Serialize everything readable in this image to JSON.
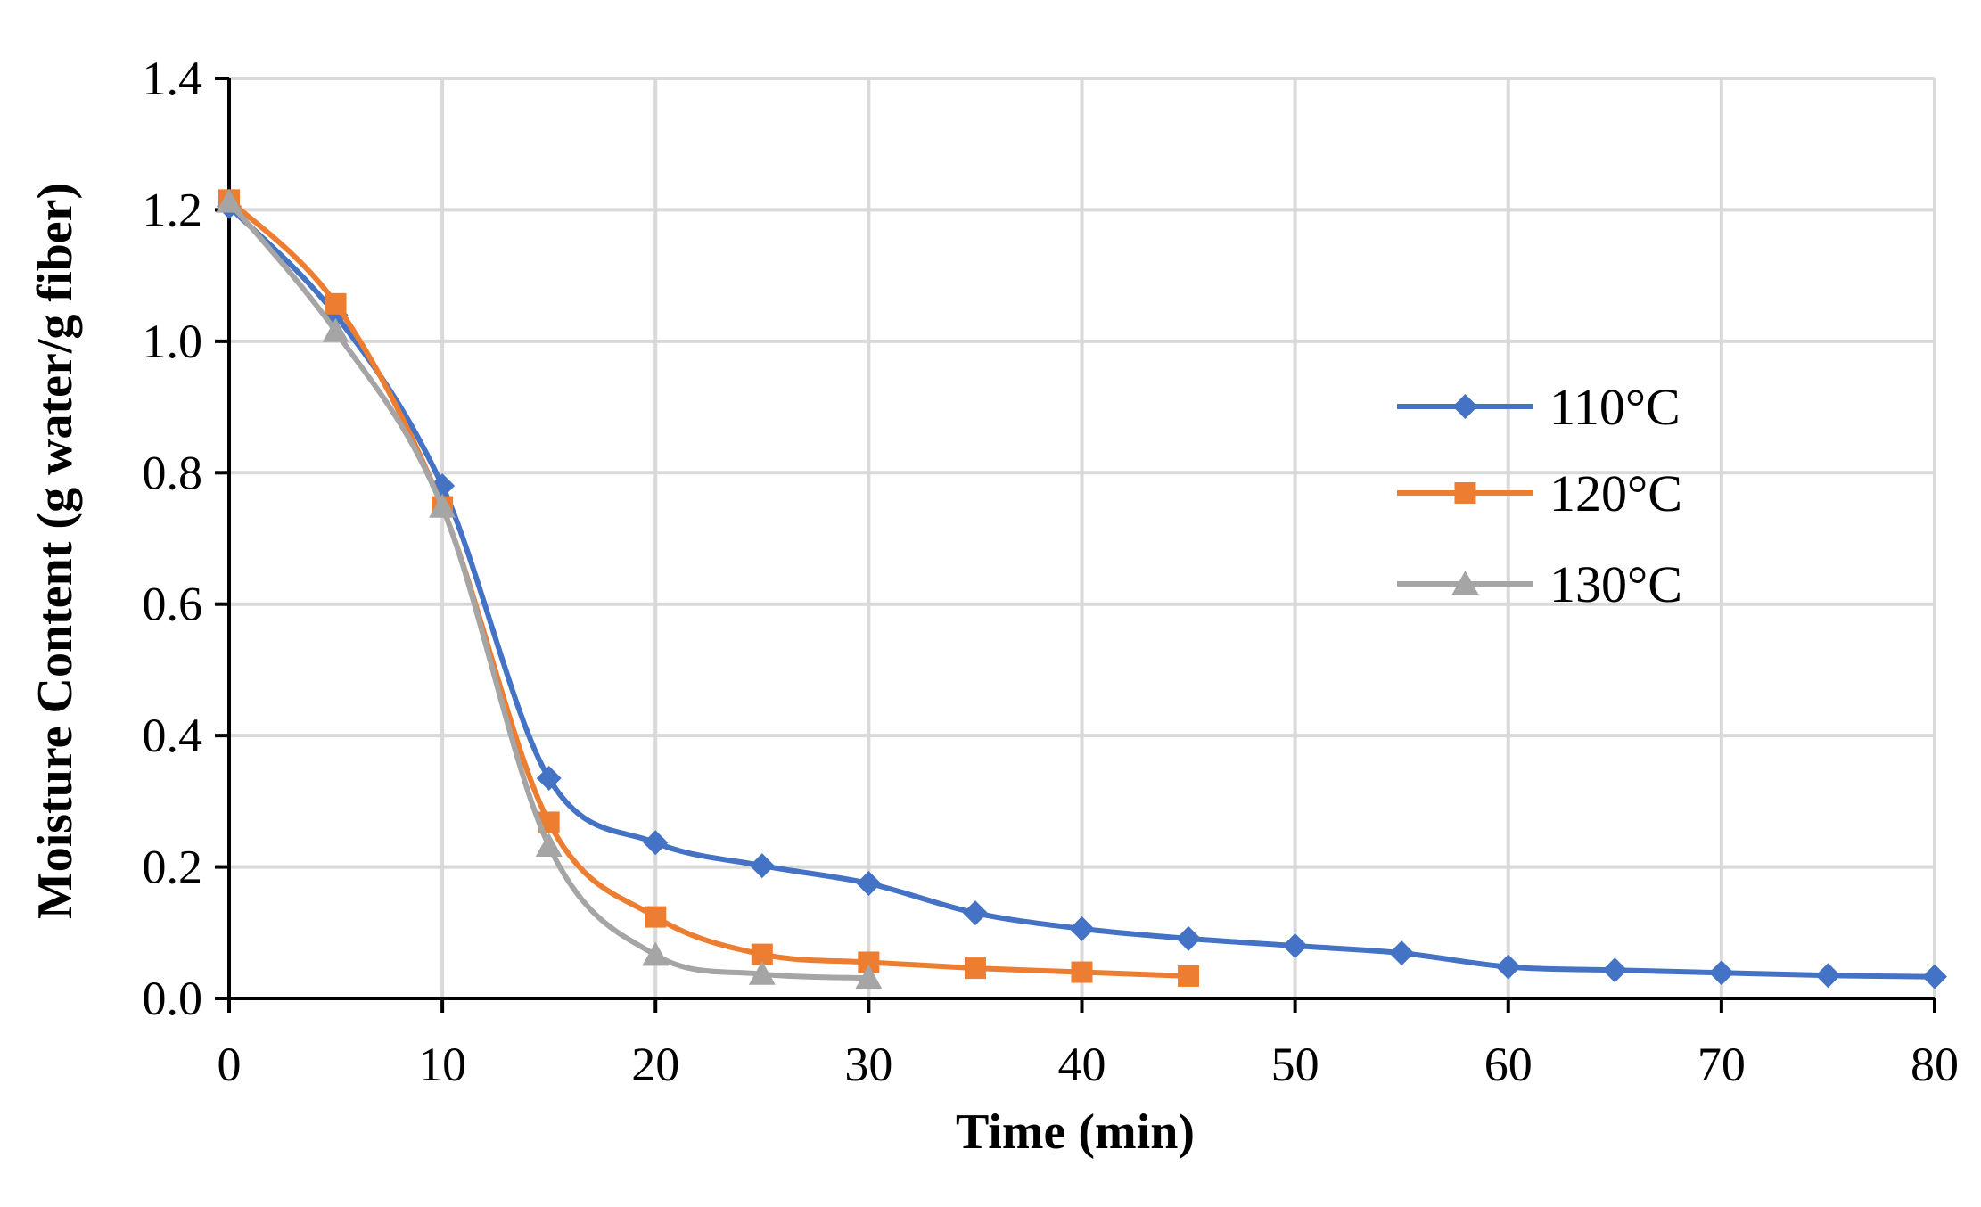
{
  "chart_data": {
    "type": "line",
    "title": "",
    "xlabel": "Time (min)",
    "ylabel": "Moisture Content (g water/g fiber)",
    "xlim": [
      0,
      80
    ],
    "ylim": [
      0,
      1.4
    ],
    "x_ticks": [
      "0",
      "10",
      "20",
      "30",
      "40",
      "50",
      "60",
      "70",
      "80"
    ],
    "y_ticks": [
      "0.0",
      "0.2",
      "0.4",
      "0.6",
      "0.8",
      "1.0",
      "1.2",
      "1.4"
    ],
    "grid": true,
    "legend_position": "right",
    "series": [
      {
        "name": "110°C",
        "color": "#4472C4",
        "marker": "diamond",
        "x": [
          0,
          5,
          10,
          15,
          20,
          25,
          30,
          35,
          40,
          45,
          50,
          55,
          60,
          65,
          70,
          75,
          80
        ],
        "y": [
          1.205,
          1.04,
          0.78,
          0.335,
          0.237,
          0.202,
          0.175,
          0.13,
          0.106,
          0.091,
          0.08,
          0.069,
          0.048,
          0.043,
          0.039,
          0.035,
          0.033
        ]
      },
      {
        "name": "120°C",
        "color": "#ED7D31",
        "marker": "square",
        "x": [
          0,
          5,
          10,
          15,
          20,
          25,
          30,
          35,
          40,
          45
        ],
        "y": [
          1.215,
          1.057,
          0.748,
          0.268,
          0.124,
          0.067,
          0.055,
          0.046,
          0.04,
          0.034
        ]
      },
      {
        "name": "130°C",
        "color": "#A5A5A5",
        "marker": "triangle",
        "x": [
          0,
          5,
          10,
          15,
          20,
          25,
          30
        ],
        "y": [
          1.212,
          1.015,
          0.748,
          0.232,
          0.066,
          0.037,
          0.031
        ]
      }
    ]
  }
}
